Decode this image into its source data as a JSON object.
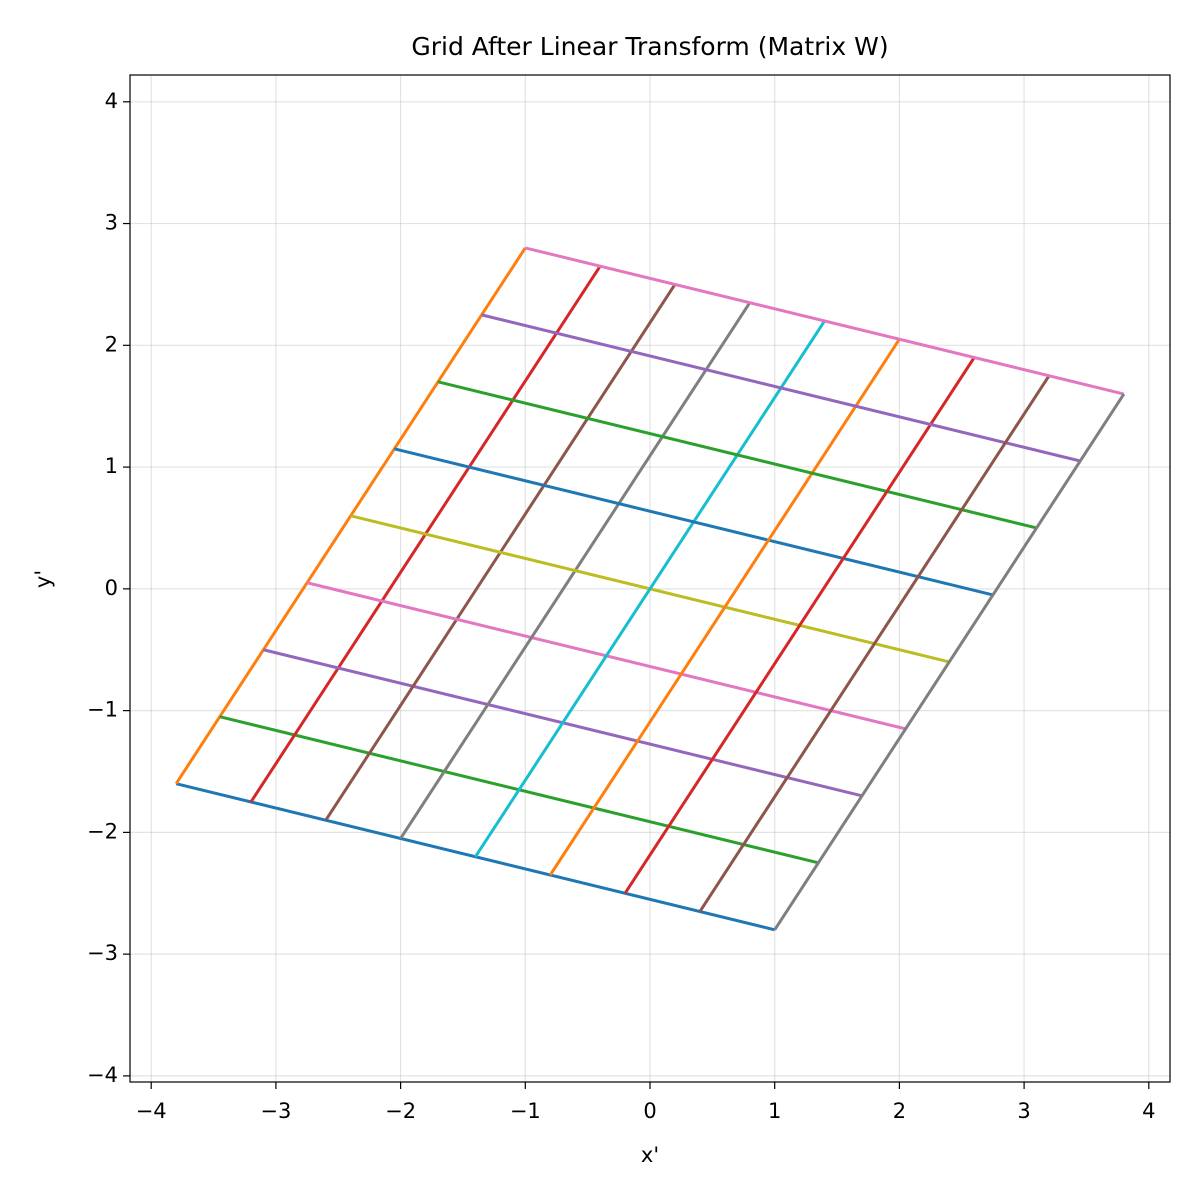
{
  "chart_data": {
    "type": "line",
    "title": "Grid After Linear Transform (Matrix W)",
    "x_label": "x'",
    "y_label": "y'",
    "xlim": [
      -4.17,
      4.17
    ],
    "ylim": [
      -4.05,
      4.22
    ],
    "xticks": [
      {
        "value": -4,
        "label": "−4"
      },
      {
        "value": -3,
        "label": "−3"
      },
      {
        "value": -2,
        "label": "−2"
      },
      {
        "value": -1,
        "label": "−1"
      },
      0,
      1,
      2,
      3,
      4
    ],
    "yticks": [
      {
        "value": -4,
        "label": "−4"
      },
      {
        "value": -3,
        "label": "−3"
      },
      {
        "value": -2,
        "label": "−2"
      },
      {
        "value": -1,
        "label": "−1"
      },
      0,
      1,
      2,
      3,
      4
    ],
    "grid": true,
    "series": [
      {
        "color": "#1f77b4",
        "x": [
          -3.8,
          1.0
        ],
        "values": [
          -1.6,
          -2.8
        ]
      },
      {
        "color": "#ff7f0e",
        "x": [
          -3.8,
          -1.0
        ],
        "values": [
          -1.6,
          2.8
        ]
      },
      {
        "color": "#2ca02c",
        "x": [
          -3.45,
          1.35
        ],
        "values": [
          -1.05,
          -2.25
        ]
      },
      {
        "color": "#d62728",
        "x": [
          -3.2,
          -0.4
        ],
        "values": [
          -1.75,
          2.65
        ]
      },
      {
        "color": "#9467bd",
        "x": [
          -3.1,
          1.7
        ],
        "values": [
          -0.5,
          -1.7
        ]
      },
      {
        "color": "#8c564b",
        "x": [
          -2.6,
          0.2
        ],
        "values": [
          -1.9,
          2.5
        ]
      },
      {
        "color": "#e377c2",
        "x": [
          -2.75,
          2.05
        ],
        "values": [
          0.05,
          -1.15
        ]
      },
      {
        "color": "#7f7f7f",
        "x": [
          -2.0,
          0.8
        ],
        "values": [
          -2.05,
          2.35
        ]
      },
      {
        "color": "#bcbd22",
        "x": [
          -2.4,
          2.4
        ],
        "values": [
          0.6,
          -0.6
        ]
      },
      {
        "color": "#17becf",
        "x": [
          -1.4,
          1.4
        ],
        "values": [
          -2.2,
          2.2
        ]
      },
      {
        "color": "#1f77b4",
        "x": [
          -2.05,
          2.75
        ],
        "values": [
          1.15,
          -0.05
        ]
      },
      {
        "color": "#ff7f0e",
        "x": [
          -0.8,
          2.0
        ],
        "values": [
          -2.35,
          2.05
        ]
      },
      {
        "color": "#2ca02c",
        "x": [
          -1.7,
          3.1
        ],
        "values": [
          1.7,
          0.5
        ]
      },
      {
        "color": "#d62728",
        "x": [
          -0.2,
          2.6
        ],
        "values": [
          -2.5,
          1.9
        ]
      },
      {
        "color": "#9467bd",
        "x": [
          -1.35,
          3.45
        ],
        "values": [
          2.25,
          1.05
        ]
      },
      {
        "color": "#8c564b",
        "x": [
          0.4,
          3.2
        ],
        "values": [
          -2.65,
          1.75
        ]
      },
      {
        "color": "#e377c2",
        "x": [
          -1.0,
          3.8
        ],
        "values": [
          2.8,
          1.6
        ]
      },
      {
        "color": "#7f7f7f",
        "x": [
          1.0,
          3.8
        ],
        "values": [
          -2.8,
          1.6
        ]
      }
    ]
  }
}
